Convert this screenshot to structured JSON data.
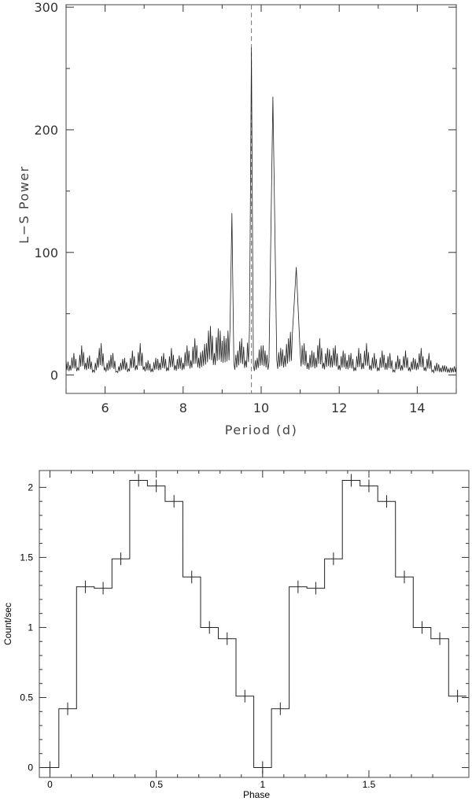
{
  "chart_data": [
    {
      "type": "line",
      "xlabel": "Period (d)",
      "ylabel": "L−S Power",
      "xlim": [
        5,
        15
      ],
      "ylim": [
        -15,
        302
      ],
      "xticks": [
        6,
        8,
        10,
        12,
        14
      ],
      "yticks": [
        0,
        100,
        200,
        300
      ],
      "grid": false,
      "marker_period": 9.75,
      "peaks": [
        {
          "x": 9.25,
          "y": 132
        },
        {
          "x": 9.75,
          "y": 267
        },
        {
          "x": 10.3,
          "y": 227
        },
        {
          "x": 10.9,
          "y": 88
        }
      ],
      "x": [
        5.0,
        5.1,
        5.2,
        5.3,
        5.4,
        5.5,
        5.6,
        5.7,
        5.8,
        5.9,
        6.0,
        6.1,
        6.2,
        6.3,
        6.4,
        6.5,
        6.6,
        6.7,
        6.8,
        6.9,
        7.0,
        7.1,
        7.2,
        7.3,
        7.4,
        7.5,
        7.6,
        7.7,
        7.8,
        7.9,
        8.0,
        8.1,
        8.2,
        8.3,
        8.4,
        8.5,
        8.6,
        8.7,
        8.8,
        8.9,
        9.0,
        9.1,
        9.2,
        9.25,
        9.3,
        9.4,
        9.5,
        9.6,
        9.7,
        9.75,
        9.8,
        9.9,
        10.0,
        10.1,
        10.2,
        10.3,
        10.4,
        10.5,
        10.6,
        10.7,
        10.8,
        10.9,
        11.0,
        11.1,
        11.2,
        11.3,
        11.4,
        11.5,
        11.6,
        11.7,
        11.8,
        11.9,
        12.0,
        12.1,
        12.2,
        12.3,
        12.4,
        12.5,
        12.6,
        12.7,
        12.8,
        12.9,
        13.0,
        13.1,
        13.2,
        13.3,
        13.4,
        13.5,
        13.6,
        13.7,
        13.8,
        13.9,
        14.0,
        14.1,
        14.2,
        14.3,
        14.4,
        14.5,
        14.6,
        14.7,
        14.8,
        14.9,
        15.0
      ],
      "y": [
        12,
        8,
        18,
        6,
        24,
        10,
        16,
        4,
        14,
        26,
        6,
        12,
        18,
        3,
        10,
        14,
        5,
        20,
        8,
        26,
        7,
        12,
        5,
        14,
        10,
        18,
        6,
        22,
        8,
        16,
        10,
        24,
        12,
        30,
        14,
        20,
        26,
        40,
        18,
        38,
        28,
        30,
        36,
        132,
        10,
        20,
        30,
        12,
        36,
        267,
        8,
        14,
        24,
        20,
        10,
        227,
        12,
        22,
        16,
        30,
        34,
        88,
        18,
        26,
        10,
        20,
        14,
        30,
        10,
        22,
        16,
        24,
        8,
        20,
        12,
        18,
        6,
        22,
        10,
        26,
        8,
        18,
        6,
        20,
        10,
        18,
        4,
        16,
        8,
        20,
        6,
        14,
        10,
        22,
        6,
        18,
        4,
        10,
        6,
        8,
        5,
        6,
        7
      ],
      "title": ""
    },
    {
      "type": "line",
      "xlabel": "Phase",
      "ylabel": "Count/sec",
      "xlim": [
        -0.05,
        1.97
      ],
      "ylim": [
        -0.07,
        2.12
      ],
      "xticks": [
        0,
        0.5,
        1,
        1.5
      ],
      "yticks": [
        0,
        0.5,
        1,
        1.5,
        2
      ],
      "grid": false,
      "bin_width": 0.0833,
      "x": [
        0.0,
        0.0833,
        0.1667,
        0.25,
        0.3333,
        0.4167,
        0.5,
        0.5833,
        0.6667,
        0.75,
        0.8333,
        0.9167,
        1.0,
        1.0833,
        1.1667,
        1.25,
        1.3333,
        1.4167,
        1.5,
        1.5833,
        1.6667,
        1.75,
        1.8333,
        1.9167
      ],
      "y": [
        0.0,
        0.42,
        1.29,
        1.28,
        1.49,
        2.05,
        2.01,
        1.9,
        1.36,
        1.0,
        0.92,
        0.51,
        0.0,
        0.42,
        1.29,
        1.28,
        1.49,
        2.05,
        2.01,
        1.9,
        1.36,
        1.0,
        0.92,
        0.51
      ],
      "title": ""
    }
  ]
}
